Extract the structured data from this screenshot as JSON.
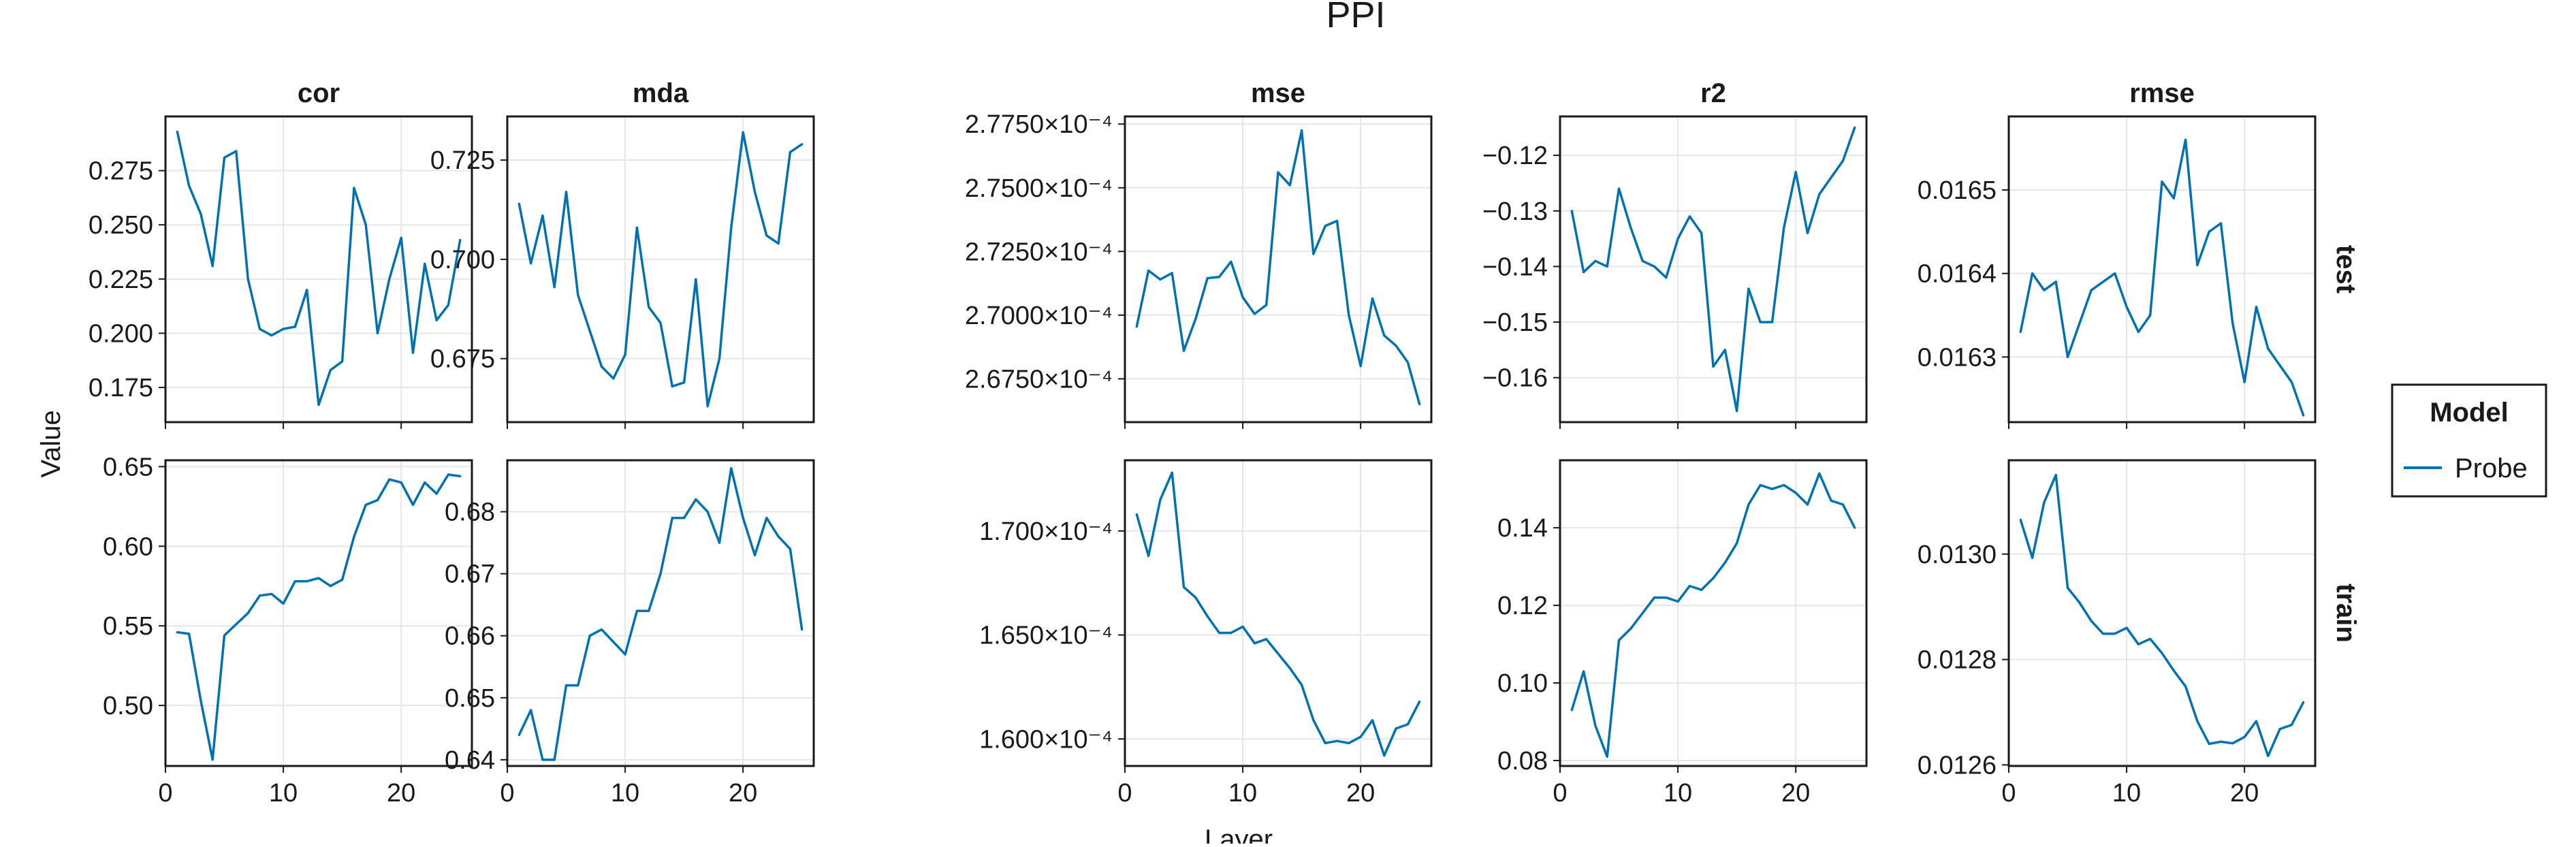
{
  "figure": {
    "title": "PPI",
    "xlabel": "Layer",
    "ylabel": "Value",
    "legend": {
      "title": "Model",
      "placement": "right",
      "entries": [
        {
          "label": "Probe",
          "color": "#0072b2"
        }
      ]
    },
    "columns": [
      "cor",
      "mda",
      "mse",
      "r2",
      "rmse"
    ],
    "rows": [
      "test",
      "train"
    ],
    "line_color": "#0072b2",
    "grid": true
  },
  "chart_data": [
    {
      "type": "line",
      "metric": "cor",
      "split": "test",
      "x": [
        1,
        2,
        3,
        4,
        5,
        6,
        7,
        8,
        9,
        10,
        11,
        12,
        13,
        14,
        15,
        16,
        17,
        18,
        19,
        20,
        21,
        22,
        23,
        24,
        25
      ],
      "series": [
        {
          "name": "Probe",
          "values": [
            0.293,
            0.268,
            0.255,
            0.231,
            0.281,
            0.284,
            0.225,
            0.202,
            0.199,
            0.202,
            0.203,
            0.22,
            0.167,
            0.183,
            0.187,
            0.267,
            0.25,
            0.2,
            0.225,
            0.244,
            0.191,
            0.232,
            0.206,
            0.213,
            0.243
          ]
        }
      ],
      "xlim": [
        0,
        26
      ],
      "ylim": [
        0.159,
        0.3
      ],
      "yticks": [
        0.175,
        0.2,
        0.225,
        0.25,
        0.275
      ],
      "ytick_labels": [
        "0.175",
        "0.200",
        "0.225",
        "0.250",
        "0.275"
      ],
      "xticks": [
        0,
        10,
        20
      ],
      "xtick_labels": [
        "0",
        "10",
        "20"
      ]
    },
    {
      "type": "line",
      "metric": "mda",
      "split": "test",
      "x": [
        1,
        2,
        3,
        4,
        5,
        6,
        7,
        8,
        9,
        10,
        11,
        12,
        13,
        14,
        15,
        16,
        17,
        18,
        19,
        20,
        21,
        22,
        23,
        24,
        25
      ],
      "series": [
        {
          "name": "Probe",
          "values": [
            0.714,
            0.699,
            0.711,
            0.693,
            0.717,
            0.691,
            0.682,
            0.673,
            0.67,
            0.676,
            0.708,
            0.688,
            0.684,
            0.668,
            0.669,
            0.695,
            0.663,
            0.675,
            0.708,
            0.732,
            0.717,
            0.706,
            0.704,
            0.727,
            0.729
          ]
        }
      ],
      "xlim": [
        0,
        26
      ],
      "ylim": [
        0.659,
        0.736
      ],
      "yticks": [
        0.675,
        0.7,
        0.725
      ],
      "ytick_labels": [
        "0.675",
        "0.700",
        "0.725"
      ],
      "xticks": [
        0,
        10,
        20
      ],
      "xtick_labels": [
        "0",
        "10",
        "20"
      ]
    },
    {
      "type": "line",
      "metric": "mse",
      "split": "test",
      "x": [
        1,
        2,
        3,
        4,
        5,
        6,
        7,
        8,
        9,
        10,
        11,
        12,
        13,
        14,
        15,
        16,
        17,
        18,
        19,
        20,
        21,
        22,
        23,
        24,
        25
      ],
      "series": [
        {
          "name": "Probe",
          "values": [
            2.6955,
            2.7175,
            2.714,
            2.7165,
            2.686,
            2.6985,
            2.7145,
            2.715,
            2.721,
            2.707,
            2.7005,
            2.704,
            2.756,
            2.751,
            2.7725,
            2.724,
            2.735,
            2.737,
            2.7,
            2.68,
            2.7065,
            2.692,
            2.688,
            2.6815,
            2.665
          ]
        }
      ],
      "xlim": [
        0,
        26
      ],
      "ylim": [
        2.658,
        2.778
      ],
      "yticks": [
        2.675,
        2.7,
        2.725,
        2.75,
        2.775
      ],
      "ytick_labels": [
        "2.6750×10⁻⁴",
        "2.7000×10⁻⁴",
        "2.7250×10⁻⁴",
        "2.7500×10⁻⁴",
        "2.7750×10⁻⁴"
      ],
      "xticks": [
        0,
        10,
        20
      ],
      "xtick_labels": [
        "0",
        "10",
        "20"
      ]
    },
    {
      "type": "line",
      "metric": "r2",
      "split": "test",
      "x": [
        1,
        2,
        3,
        4,
        5,
        6,
        7,
        8,
        9,
        10,
        11,
        12,
        13,
        14,
        15,
        16,
        17,
        18,
        19,
        20,
        21,
        22,
        23,
        24,
        25
      ],
      "series": [
        {
          "name": "Probe",
          "values": [
            -0.13,
            -0.141,
            -0.139,
            -0.14,
            -0.126,
            -0.133,
            -0.139,
            -0.14,
            -0.142,
            -0.135,
            -0.131,
            -0.134,
            -0.158,
            -0.155,
            -0.166,
            -0.144,
            -0.15,
            -0.15,
            -0.133,
            -0.123,
            -0.134,
            -0.127,
            -0.124,
            -0.121,
            -0.115
          ]
        }
      ],
      "xlim": [
        0,
        26
      ],
      "ylim": [
        -0.168,
        -0.113
      ],
      "yticks": [
        -0.16,
        -0.15,
        -0.14,
        -0.13,
        -0.12
      ],
      "ytick_labels": [
        "−0.16",
        "−0.15",
        "−0.14",
        "−0.13",
        "−0.12"
      ],
      "xticks": [
        0,
        10,
        20
      ],
      "xtick_labels": [
        "0",
        "10",
        "20"
      ]
    },
    {
      "type": "line",
      "metric": "rmse",
      "split": "test",
      "x": [
        1,
        2,
        3,
        4,
        5,
        6,
        7,
        8,
        9,
        10,
        11,
        12,
        13,
        14,
        15,
        16,
        17,
        18,
        19,
        20,
        21,
        22,
        23,
        24,
        25
      ],
      "series": [
        {
          "name": "Probe",
          "values": [
            0.01633,
            0.0164,
            0.01638,
            0.01639,
            0.0163,
            0.01634,
            0.01638,
            0.01639,
            0.0164,
            0.01636,
            0.01633,
            0.01635,
            0.01651,
            0.01649,
            0.01656,
            0.01641,
            0.01645,
            0.01646,
            0.01634,
            0.01627,
            0.01636,
            0.01631,
            0.01629,
            0.01627,
            0.01623
          ]
        }
      ],
      "xlim": [
        0,
        26
      ],
      "ylim": [
        0.016222,
        0.016588
      ],
      "yticks": [
        0.0163,
        0.0164,
        0.0165
      ],
      "ytick_labels": [
        "0.0163",
        "0.0164",
        "0.0165"
      ],
      "xticks": [
        0,
        10,
        20
      ],
      "xtick_labels": [
        "0",
        "10",
        "20"
      ]
    },
    {
      "type": "line",
      "metric": "cor",
      "split": "train",
      "x": [
        1,
        2,
        3,
        4,
        5,
        6,
        7,
        8,
        9,
        10,
        11,
        12,
        13,
        14,
        15,
        16,
        17,
        18,
        19,
        20,
        21,
        22,
        23,
        24,
        25
      ],
      "series": [
        {
          "name": "Probe",
          "values": [
            0.546,
            0.545,
            0.503,
            0.466,
            0.544,
            0.551,
            0.558,
            0.569,
            0.57,
            0.564,
            0.578,
            0.578,
            0.58,
            0.575,
            0.579,
            0.606,
            0.626,
            0.629,
            0.642,
            0.64,
            0.626,
            0.64,
            0.633,
            0.645,
            0.644
          ]
        }
      ],
      "xlim": [
        0,
        26
      ],
      "ylim": [
        0.462,
        0.654
      ],
      "yticks": [
        0.5,
        0.55,
        0.6,
        0.65
      ],
      "ytick_labels": [
        "0.50",
        "0.55",
        "0.60",
        "0.65"
      ],
      "xticks": [
        0,
        10,
        20
      ],
      "xtick_labels": [
        "0",
        "10",
        "20"
      ]
    },
    {
      "type": "line",
      "metric": "mda",
      "split": "train",
      "x": [
        1,
        2,
        3,
        4,
        5,
        6,
        7,
        8,
        9,
        10,
        11,
        12,
        13,
        14,
        15,
        16,
        17,
        18,
        19,
        20,
        21,
        22,
        23,
        24,
        25
      ],
      "series": [
        {
          "name": "Probe",
          "values": [
            0.644,
            0.648,
            0.64,
            0.64,
            0.652,
            0.652,
            0.66,
            0.661,
            0.659,
            0.657,
            0.664,
            0.664,
            0.67,
            0.679,
            0.679,
            0.682,
            0.68,
            0.675,
            0.687,
            0.679,
            0.673,
            0.679,
            0.676,
            0.674,
            0.661
          ]
        }
      ],
      "xlim": [
        0,
        26
      ],
      "ylim": [
        0.639,
        0.6883
      ],
      "yticks": [
        0.64,
        0.65,
        0.66,
        0.67,
        0.68
      ],
      "ytick_labels": [
        "0.64",
        "0.65",
        "0.66",
        "0.67",
        "0.68"
      ],
      "xticks": [
        0,
        10,
        20
      ],
      "xtick_labels": [
        "0",
        "10",
        "20"
      ]
    },
    {
      "type": "line",
      "metric": "mse",
      "split": "train",
      "x": [
        1,
        2,
        3,
        4,
        5,
        6,
        7,
        8,
        9,
        10,
        11,
        12,
        13,
        14,
        15,
        16,
        17,
        18,
        19,
        20,
        21,
        22,
        23,
        24,
        25
      ],
      "series": [
        {
          "name": "Probe",
          "values": [
            1.708,
            1.688,
            1.715,
            1.728,
            1.673,
            1.668,
            1.659,
            1.651,
            1.651,
            1.654,
            1.646,
            1.648,
            1.641,
            1.634,
            1.626,
            1.609,
            1.598,
            1.599,
            1.598,
            1.601,
            1.609,
            1.592,
            1.605,
            1.607,
            1.618
          ]
        }
      ],
      "xlim": [
        0,
        26
      ],
      "ylim": [
        1.587,
        1.734
      ],
      "yticks": [
        1.6,
        1.65,
        1.7
      ],
      "ytick_labels": [
        "1.600×10⁻⁴",
        "1.650×10⁻⁴",
        "1.700×10⁻⁴"
      ],
      "xticks": [
        0,
        10,
        20
      ],
      "xtick_labels": [
        "0",
        "10",
        "20"
      ]
    },
    {
      "type": "line",
      "metric": "r2",
      "split": "train",
      "x": [
        1,
        2,
        3,
        4,
        5,
        6,
        7,
        8,
        9,
        10,
        11,
        12,
        13,
        14,
        15,
        16,
        17,
        18,
        19,
        20,
        21,
        22,
        23,
        24,
        25
      ],
      "series": [
        {
          "name": "Probe",
          "values": [
            0.093,
            0.103,
            0.089,
            0.081,
            0.111,
            0.114,
            0.118,
            0.122,
            0.122,
            0.121,
            0.125,
            0.124,
            0.127,
            0.131,
            0.136,
            0.146,
            0.151,
            0.15,
            0.151,
            0.149,
            0.146,
            0.154,
            0.147,
            0.146,
            0.14
          ]
        }
      ],
      "xlim": [
        0,
        26
      ],
      "ylim": [
        0.0786,
        0.1574
      ],
      "yticks": [
        0.08,
        0.1,
        0.12,
        0.14
      ],
      "ytick_labels": [
        "0.08",
        "0.10",
        "0.12",
        "0.14"
      ],
      "xticks": [
        0,
        10,
        20
      ],
      "xtick_labels": [
        "0",
        "10",
        "20"
      ]
    },
    {
      "type": "line",
      "metric": "rmse",
      "split": "train",
      "x": [
        1,
        2,
        3,
        4,
        5,
        6,
        7,
        8,
        9,
        10,
        11,
        12,
        13,
        14,
        15,
        16,
        17,
        18,
        19,
        20,
        21,
        22,
        23,
        24,
        25
      ],
      "series": [
        {
          "name": "Probe",
          "values": [
            0.013065,
            0.012993,
            0.013098,
            0.01315,
            0.012936,
            0.012908,
            0.012873,
            0.012849,
            0.012849,
            0.01286,
            0.012829,
            0.012839,
            0.012812,
            0.012779,
            0.012749,
            0.012683,
            0.01264,
            0.012644,
            0.012641,
            0.012653,
            0.012683,
            0.012617,
            0.012668,
            0.012676,
            0.012719
          ]
        }
      ],
      "xlim": [
        0,
        26
      ],
      "ylim": [
        0.012598,
        0.013178
      ],
      "yticks": [
        0.0126,
        0.0128,
        0.013
      ],
      "ytick_labels": [
        "0.0126",
        "0.0128",
        "0.0130"
      ],
      "xticks": [
        0,
        10,
        20
      ],
      "xtick_labels": [
        "0",
        "10",
        "20"
      ]
    }
  ]
}
